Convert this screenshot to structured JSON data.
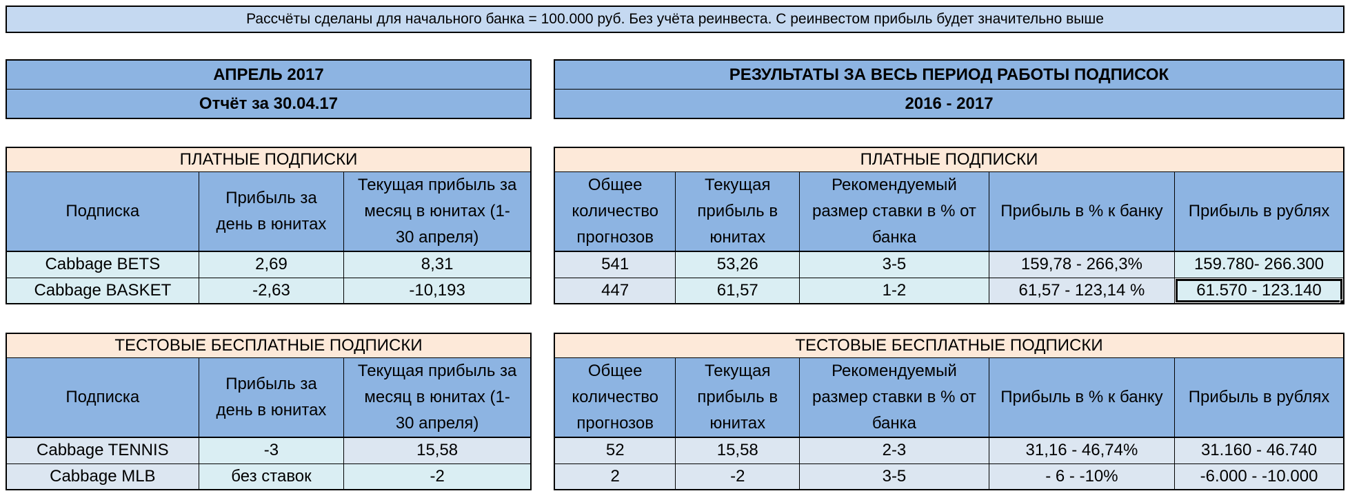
{
  "banner": {
    "text": "Рассчёты сделаны для начального банка = 100.000 руб. Без учёта реинвеста. С реинвестом прибыль будет значительно выше"
  },
  "month_header": {
    "title": "АПРЕЛЬ 2017",
    "subtitle": "Отчёт за 30.04.17"
  },
  "period_header": {
    "title": "РЕЗУЛЬТАТЫ ЗА ВЕСЬ ПЕРИОД РАБОТЫ ПОДПИСОК",
    "subtitle": "2016 - 2017"
  },
  "month_tables": {
    "paid": {
      "title": "ПЛАТНЫЕ ПОДПИСКИ",
      "columns": [
        "Подписка",
        "Прибыль за день в юнитах",
        "Текущая прибыль за месяц в юнитах (1- 30 апреля)"
      ],
      "rows": [
        [
          "Cabbage BETS",
          "2,69",
          "8,31"
        ],
        [
          "Cabbage BASKET",
          "-2,63",
          "-10,193"
        ]
      ]
    },
    "test": {
      "title": "ТЕСТОВЫЕ БЕСПЛАТНЫЕ ПОДПИСКИ",
      "columns": [
        "Подписка",
        "Прибыль за день в юнитах",
        "Текущая прибыль за месяц в юнитах (1- 30 апреля)"
      ],
      "rows": [
        [
          "Cabbage TENNIS",
          "-3",
          "15,58"
        ],
        [
          "Cabbage MLB",
          "без ставок",
          "-2"
        ]
      ]
    }
  },
  "period_tables": {
    "paid": {
      "title": "ПЛАТНЫЕ ПОДПИСКИ",
      "columns": [
        "Общее количество прогнозов",
        "Текущая прибыль в юнитах",
        "Рекомендуемый размер ставки в % от банка",
        "Прибыль в % к банку",
        "Прибыль в рублях"
      ],
      "rows": [
        [
          "541",
          "53,26",
          "3-5",
          "159,78 - 266,3%",
          "159.780- 266.300"
        ],
        [
          "447",
          "61,57",
          "1-2",
          "61,57 - 123,14 %",
          "61.570 - 123.140"
        ]
      ]
    },
    "test": {
      "title": "ТЕСТОВЫЕ БЕСПЛАТНЫЕ ПОДПИСКИ",
      "columns": [
        "Общее количество прогнозов",
        "Текущая прибыль в юнитах",
        "Рекомендуемый размер ставки в % от банка",
        "Прибыль в % к банку",
        "Прибыль в рублях"
      ],
      "rows": [
        [
          "52",
          "15,58",
          "2-3",
          "31,16 - 46,74%",
          "31.160 - 46.740"
        ],
        [
          "2",
          "-2",
          "3-5",
          "- 6 - -10%",
          "-6.000 - -10.000"
        ]
      ]
    }
  },
  "colors": {
    "banner_bg": "#C5D9F1",
    "header_bg": "#8DB4E2",
    "section_title_bg": "#FDE9D9",
    "cell_cyan": "#DAEEF3",
    "cell_blue": "#DCE6F1",
    "border": "#000000"
  }
}
